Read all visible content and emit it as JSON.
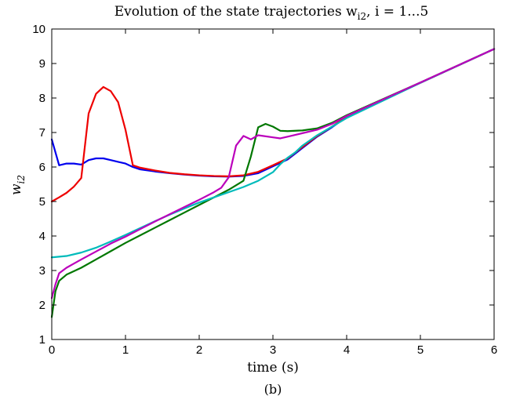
{
  "chart_data": {
    "type": "line",
    "title": "Evolution of the state trajectories w",
    "title_subscript": "i2",
    "title_suffix": ", i = 1...5",
    "xlabel": "time (s)",
    "ylabel": "w",
    "ylabel_subscript": "i2",
    "caption": "(b)",
    "xlim": [
      0,
      6
    ],
    "ylim": [
      1,
      10
    ],
    "xticks": [
      0,
      1,
      2,
      3,
      4,
      5,
      6
    ],
    "yticks": [
      1,
      2,
      3,
      4,
      5,
      6,
      7,
      8,
      9,
      10
    ],
    "grid": false,
    "series": [
      {
        "color": "#0000ee",
        "points": [
          [
            0,
            6.8
          ],
          [
            0.1,
            6.05
          ],
          [
            0.2,
            6.1
          ],
          [
            0.3,
            6.1
          ],
          [
            0.4,
            6.07
          ],
          [
            0.5,
            6.2
          ],
          [
            0.6,
            6.25
          ],
          [
            0.7,
            6.25
          ],
          [
            0.8,
            6.2
          ],
          [
            0.9,
            6.15
          ],
          [
            1.0,
            6.1
          ],
          [
            1.1,
            6.0
          ],
          [
            1.2,
            5.93
          ],
          [
            1.4,
            5.87
          ],
          [
            1.6,
            5.82
          ],
          [
            1.8,
            5.78
          ],
          [
            2.0,
            5.75
          ],
          [
            2.2,
            5.73
          ],
          [
            2.4,
            5.72
          ],
          [
            2.6,
            5.74
          ],
          [
            2.8,
            5.82
          ],
          [
            3.0,
            6.02
          ],
          [
            3.2,
            6.22
          ],
          [
            3.4,
            6.55
          ],
          [
            3.6,
            6.88
          ],
          [
            3.8,
            7.15
          ],
          [
            4.0,
            7.45
          ],
          [
            5.0,
            8.44
          ],
          [
            6.0,
            9.42
          ]
        ]
      },
      {
        "color": "#ee0000",
        "points": [
          [
            0,
            5.0
          ],
          [
            0.1,
            5.12
          ],
          [
            0.2,
            5.25
          ],
          [
            0.3,
            5.43
          ],
          [
            0.4,
            5.68
          ],
          [
            0.5,
            7.55
          ],
          [
            0.6,
            8.12
          ],
          [
            0.7,
            8.32
          ],
          [
            0.8,
            8.2
          ],
          [
            0.9,
            7.88
          ],
          [
            1.0,
            7.08
          ],
          [
            1.1,
            6.05
          ],
          [
            1.2,
            5.98
          ],
          [
            1.4,
            5.9
          ],
          [
            1.6,
            5.83
          ],
          [
            1.8,
            5.79
          ],
          [
            2.0,
            5.76
          ],
          [
            2.2,
            5.74
          ],
          [
            2.4,
            5.73
          ],
          [
            2.6,
            5.76
          ],
          [
            2.8,
            5.86
          ],
          [
            3.0,
            6.05
          ],
          [
            3.2,
            6.25
          ],
          [
            3.4,
            6.58
          ],
          [
            3.6,
            6.9
          ],
          [
            3.8,
            7.17
          ],
          [
            4.0,
            7.46
          ],
          [
            5.0,
            8.44
          ],
          [
            6.0,
            9.42
          ]
        ]
      },
      {
        "color": "#007700",
        "points": [
          [
            0,
            1.65
          ],
          [
            0.05,
            2.4
          ],
          [
            0.1,
            2.7
          ],
          [
            0.2,
            2.88
          ],
          [
            0.3,
            2.98
          ],
          [
            0.4,
            3.08
          ],
          [
            0.6,
            3.32
          ],
          [
            0.8,
            3.56
          ],
          [
            1.0,
            3.8
          ],
          [
            1.2,
            4.02
          ],
          [
            1.4,
            4.24
          ],
          [
            1.6,
            4.46
          ],
          [
            1.8,
            4.68
          ],
          [
            2.0,
            4.9
          ],
          [
            2.2,
            5.12
          ],
          [
            2.4,
            5.34
          ],
          [
            2.6,
            5.6
          ],
          [
            2.7,
            6.3
          ],
          [
            2.8,
            7.15
          ],
          [
            2.9,
            7.25
          ],
          [
            3.0,
            7.17
          ],
          [
            3.1,
            7.05
          ],
          [
            3.2,
            7.04
          ],
          [
            3.4,
            7.06
          ],
          [
            3.6,
            7.12
          ],
          [
            3.8,
            7.28
          ],
          [
            4.0,
            7.5
          ],
          [
            5.0,
            8.45
          ],
          [
            6.0,
            9.42
          ]
        ]
      },
      {
        "color": "#00bbbb",
        "points": [
          [
            0,
            3.38
          ],
          [
            0.2,
            3.42
          ],
          [
            0.4,
            3.52
          ],
          [
            0.6,
            3.66
          ],
          [
            0.8,
            3.84
          ],
          [
            1.0,
            4.03
          ],
          [
            1.2,
            4.23
          ],
          [
            1.4,
            4.43
          ],
          [
            1.6,
            4.62
          ],
          [
            1.8,
            4.8
          ],
          [
            2.0,
            4.97
          ],
          [
            2.2,
            5.12
          ],
          [
            2.4,
            5.27
          ],
          [
            2.6,
            5.42
          ],
          [
            2.8,
            5.6
          ],
          [
            3.0,
            5.85
          ],
          [
            3.1,
            6.08
          ],
          [
            3.2,
            6.27
          ],
          [
            3.3,
            6.42
          ],
          [
            3.4,
            6.62
          ],
          [
            3.6,
            6.92
          ],
          [
            3.8,
            7.17
          ],
          [
            4.0,
            7.42
          ],
          [
            5.0,
            8.44
          ],
          [
            6.0,
            9.42
          ]
        ]
      },
      {
        "color": "#bb00bb",
        "points": [
          [
            0,
            2.2
          ],
          [
            0.05,
            2.6
          ],
          [
            0.1,
            2.92
          ],
          [
            0.2,
            3.08
          ],
          [
            0.3,
            3.2
          ],
          [
            0.4,
            3.32
          ],
          [
            0.6,
            3.55
          ],
          [
            0.8,
            3.78
          ],
          [
            1.0,
            3.98
          ],
          [
            1.2,
            4.2
          ],
          [
            1.4,
            4.42
          ],
          [
            1.6,
            4.63
          ],
          [
            1.8,
            4.84
          ],
          [
            2.0,
            5.05
          ],
          [
            2.2,
            5.27
          ],
          [
            2.3,
            5.4
          ],
          [
            2.4,
            5.7
          ],
          [
            2.5,
            6.62
          ],
          [
            2.6,
            6.9
          ],
          [
            2.7,
            6.8
          ],
          [
            2.8,
            6.92
          ],
          [
            3.0,
            6.86
          ],
          [
            3.1,
            6.83
          ],
          [
            3.2,
            6.88
          ],
          [
            3.4,
            6.98
          ],
          [
            3.6,
            7.08
          ],
          [
            3.8,
            7.25
          ],
          [
            4.0,
            7.48
          ],
          [
            5.0,
            8.45
          ],
          [
            6.0,
            9.42
          ]
        ]
      }
    ]
  }
}
